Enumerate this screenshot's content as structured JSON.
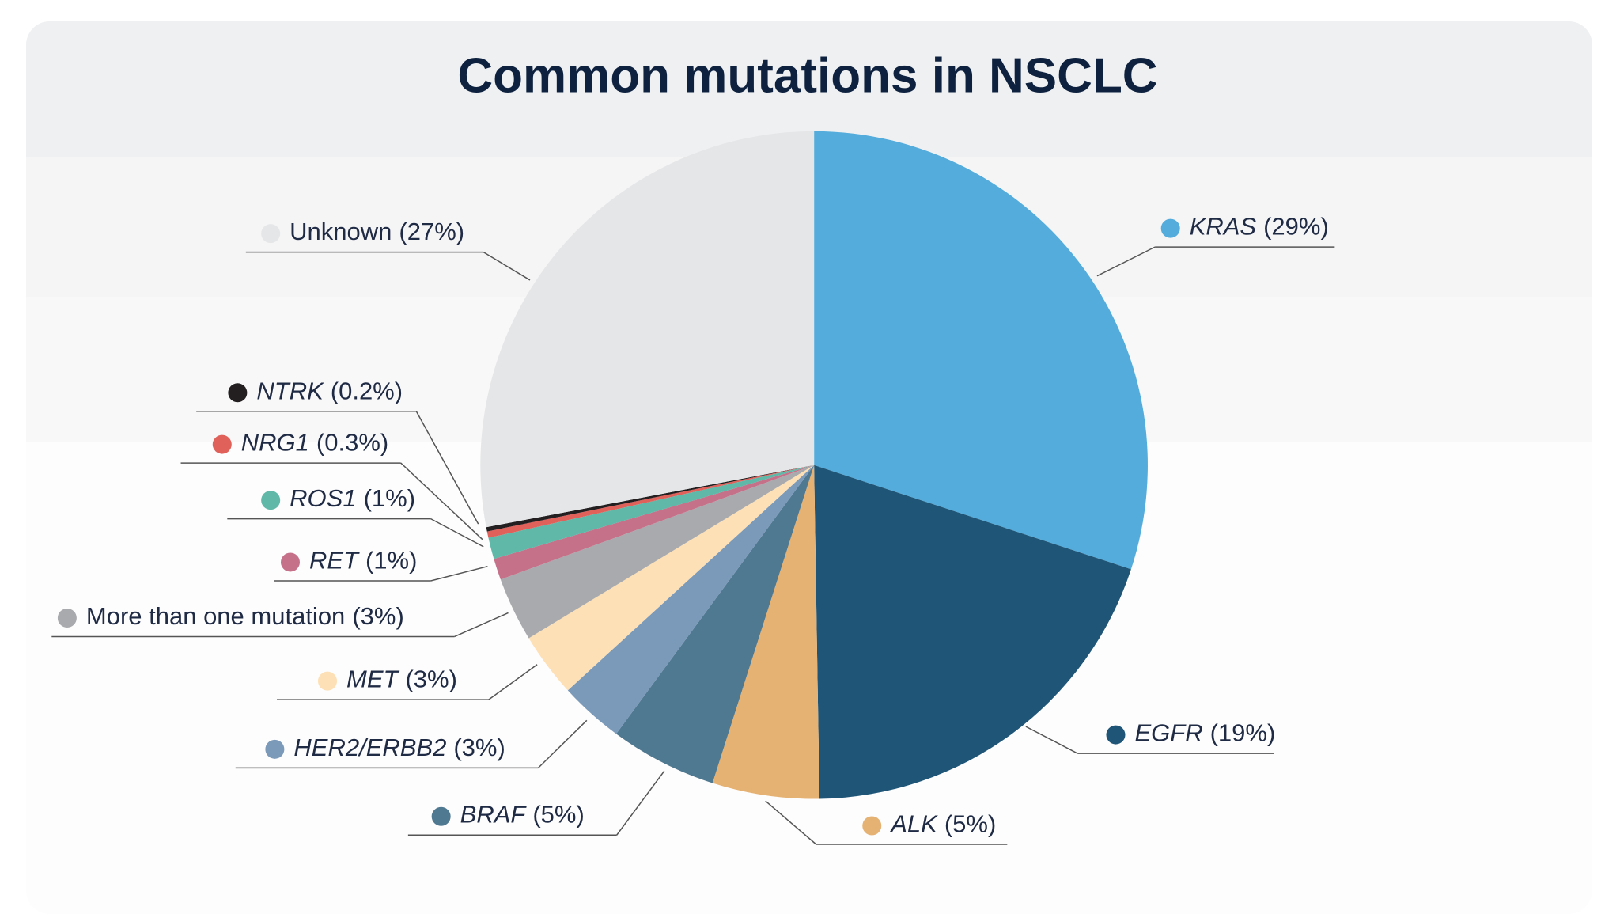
{
  "chart_data": {
    "type": "pie",
    "title": "Common mutations in NSCLC",
    "categories": [
      "KRAS",
      "EGFR",
      "ALK",
      "BRAF",
      "HER2/ERBB2",
      "MET",
      "More than one mutation",
      "RET",
      "ROS1",
      "NRG1",
      "NTRK",
      "Unknown"
    ],
    "values": [
      29,
      19,
      5,
      5,
      3,
      3,
      3,
      1,
      1,
      0.3,
      0.2,
      27
    ],
    "value_labels": [
      "(29%)",
      "(19%)",
      "(5%)",
      "(5%)",
      "(3%)",
      "(3%)",
      "(3%)",
      "(1%)",
      "(1%)",
      "(0.3%)",
      "(0.2%)",
      "(27%)"
    ],
    "colors": [
      "#53acdb",
      "#1f5577",
      "#e6b273",
      "#4f7891",
      "#7b9aba",
      "#fde0b5",
      "#a9aaad",
      "#c6718a",
      "#5fb8a8",
      "#e0605a",
      "#231f20",
      "#e5e6e8"
    ],
    "label_italic": [
      true,
      true,
      true,
      true,
      true,
      true,
      false,
      true,
      true,
      true,
      true,
      false
    ]
  }
}
